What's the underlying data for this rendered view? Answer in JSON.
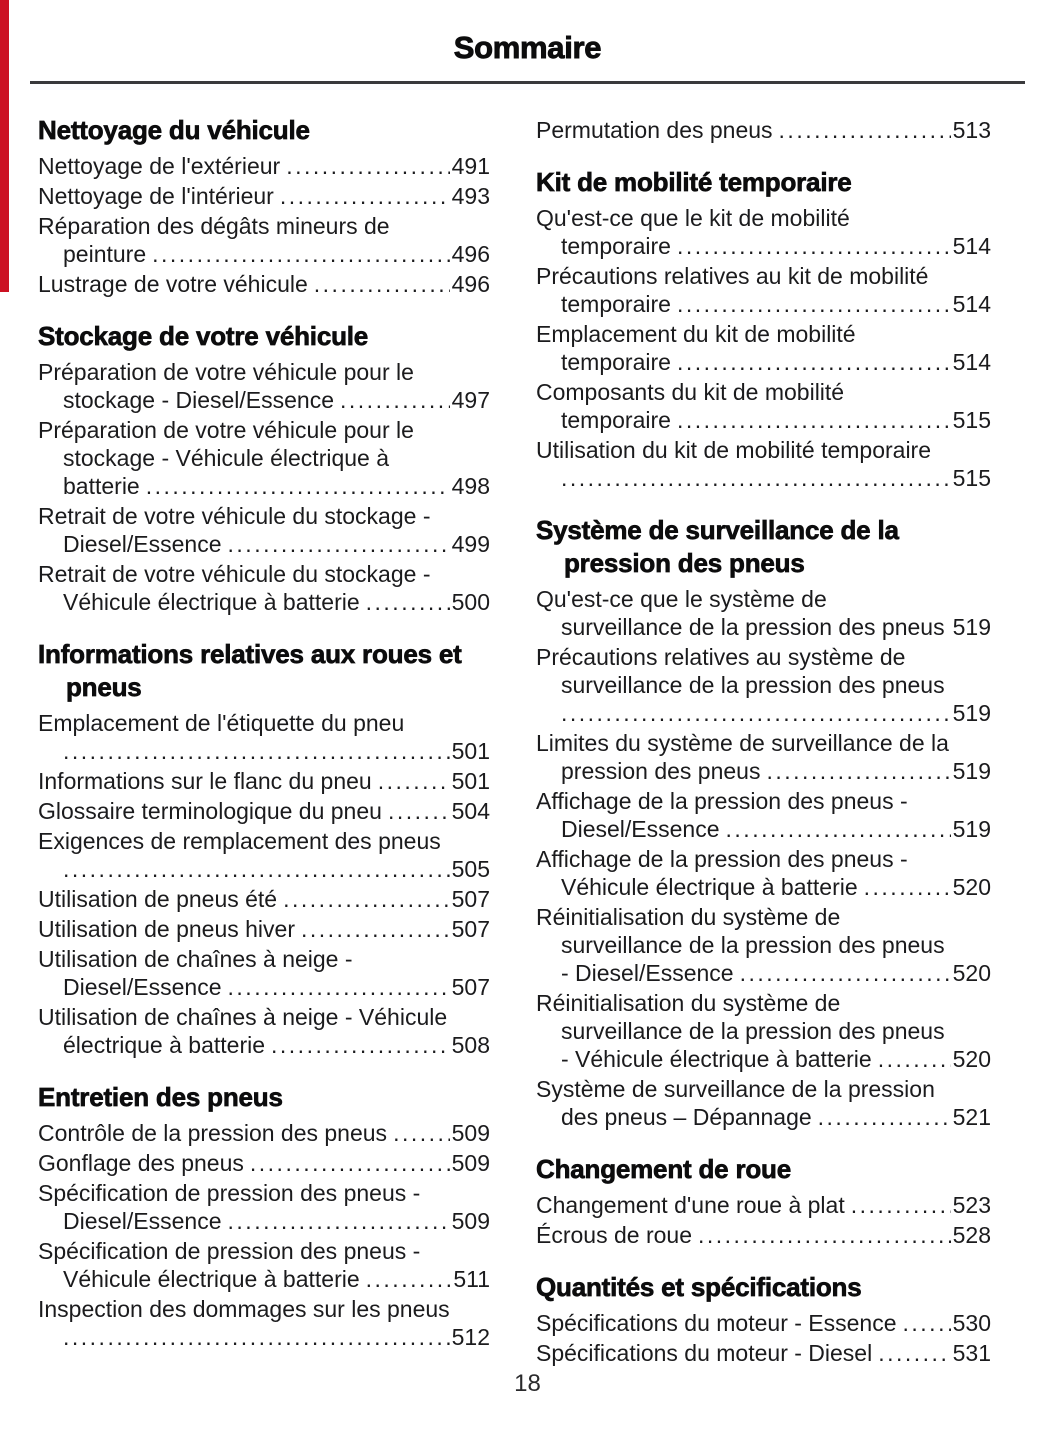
{
  "page": {
    "title": "Sommaire",
    "page_number": "18",
    "edge_tab_color": "#cc1122"
  },
  "toc": {
    "columns": [
      {
        "sections": [
          {
            "heading": "Nettoyage du véhicule",
            "entries": [
              {
                "title": "Nettoyage de l'extérieur",
                "page": "491"
              },
              {
                "title": "Nettoyage de l'intérieur",
                "page": "493"
              },
              {
                "title": "Réparation des dégâts mineurs de peinture",
                "page": "496"
              },
              {
                "title": "Lustrage de votre véhicule",
                "page": "496"
              }
            ]
          },
          {
            "heading": "Stockage de votre véhicule",
            "entries": [
              {
                "title": "Préparation de votre véhicule pour le stockage - Diesel/Essence",
                "page": "497"
              },
              {
                "title": "Préparation de votre véhicule pour le stockage - Véhicule électrique à batterie",
                "page": "498"
              },
              {
                "title": "Retrait de votre véhicule du stockage - Diesel/Essence",
                "page": "499"
              },
              {
                "title": "Retrait de votre véhicule du stockage - Véhicule électrique à batterie",
                "page": "500"
              }
            ]
          },
          {
            "heading": "Informations relatives aux roues et pneus",
            "entries": [
              {
                "title": "Emplacement de l'étiquette du pneu",
                "page": "501",
                "leader_own_line": true
              },
              {
                "title": "Informations sur le flanc du pneu",
                "page": "501"
              },
              {
                "title": "Glossaire terminologique du pneu",
                "page": "504"
              },
              {
                "title": "Exigences de remplacement des pneus",
                "page": "505",
                "leader_own_line": true
              },
              {
                "title": "Utilisation de pneus été",
                "page": "507"
              },
              {
                "title": "Utilisation de pneus hiver",
                "page": "507"
              },
              {
                "title": "Utilisation de chaînes à neige - Diesel/Essence",
                "page": "507"
              },
              {
                "title": "Utilisation de chaînes à neige - Véhicule électrique à batterie",
                "page": "508"
              }
            ]
          },
          {
            "heading": "Entretien des pneus",
            "entries": [
              {
                "title": "Contrôle de la pression des pneus",
                "page": "509"
              },
              {
                "title": "Gonflage des pneus",
                "page": "509"
              },
              {
                "title": "Spécification de pression des pneus - Diesel/Essence",
                "page": "509"
              },
              {
                "title": "Spécification de pression des pneus - Véhicule électrique à batterie",
                "page": "511"
              },
              {
                "title": "Inspection des dommages sur les pneus",
                "page": "512",
                "leader_own_line": true
              }
            ]
          }
        ]
      },
      {
        "sections": [
          {
            "heading": null,
            "entries": [
              {
                "title": "Permutation des pneus",
                "page": "513"
              }
            ]
          },
          {
            "heading": "Kit de mobilité temporaire",
            "entries": [
              {
                "title": "Qu'est-ce que le kit de mobilité temporaire",
                "page": "514"
              },
              {
                "title": "Précautions relatives au kit de mobilité temporaire",
                "page": "514"
              },
              {
                "title": "Emplacement du kit de mobilité temporaire",
                "page": "514"
              },
              {
                "title": "Composants du kit de mobilité temporaire",
                "page": "515"
              },
              {
                "title": "Utilisation du kit de mobilité temporaire",
                "page": "515",
                "leader_own_line": true
              }
            ]
          },
          {
            "heading": "Système de surveillance de la pression des pneus",
            "entries": [
              {
                "title": "Qu'est-ce que le système de surveillance de la pression des pneus",
                "page": "519"
              },
              {
                "title": "Précautions relatives au système de surveillance de la pression des pneus",
                "page": "519",
                "leader_own_line": true
              },
              {
                "title": "Limites du système de surveillance de la pression des pneus",
                "page": "519"
              },
              {
                "title": "Affichage de la pression des pneus - Diesel/Essence",
                "page": "519"
              },
              {
                "title": "Affichage de la pression des pneus - Véhicule électrique à batterie",
                "page": "520"
              },
              {
                "title": "Réinitialisation du système de surveillance de la pression des pneus - Diesel/Essence",
                "page": "520"
              },
              {
                "title": "Réinitialisation du système de surveillance de la pression des pneus - Véhicule électrique à batterie",
                "page": "520"
              },
              {
                "title": "Système de surveillance de la pression des pneus – Dépannage",
                "page": "521"
              }
            ]
          },
          {
            "heading": "Changement de roue",
            "entries": [
              {
                "title": "Changement d'une roue à plat",
                "page": "523"
              },
              {
                "title": "Écrous de roue",
                "page": "528"
              }
            ]
          },
          {
            "heading": "Quantités et spécifications",
            "entries": [
              {
                "title": "Spécifications du moteur - Essence",
                "page": "530"
              },
              {
                "title": "Spécifications du moteur - Diesel",
                "page": "531"
              }
            ]
          }
        ]
      }
    ]
  }
}
